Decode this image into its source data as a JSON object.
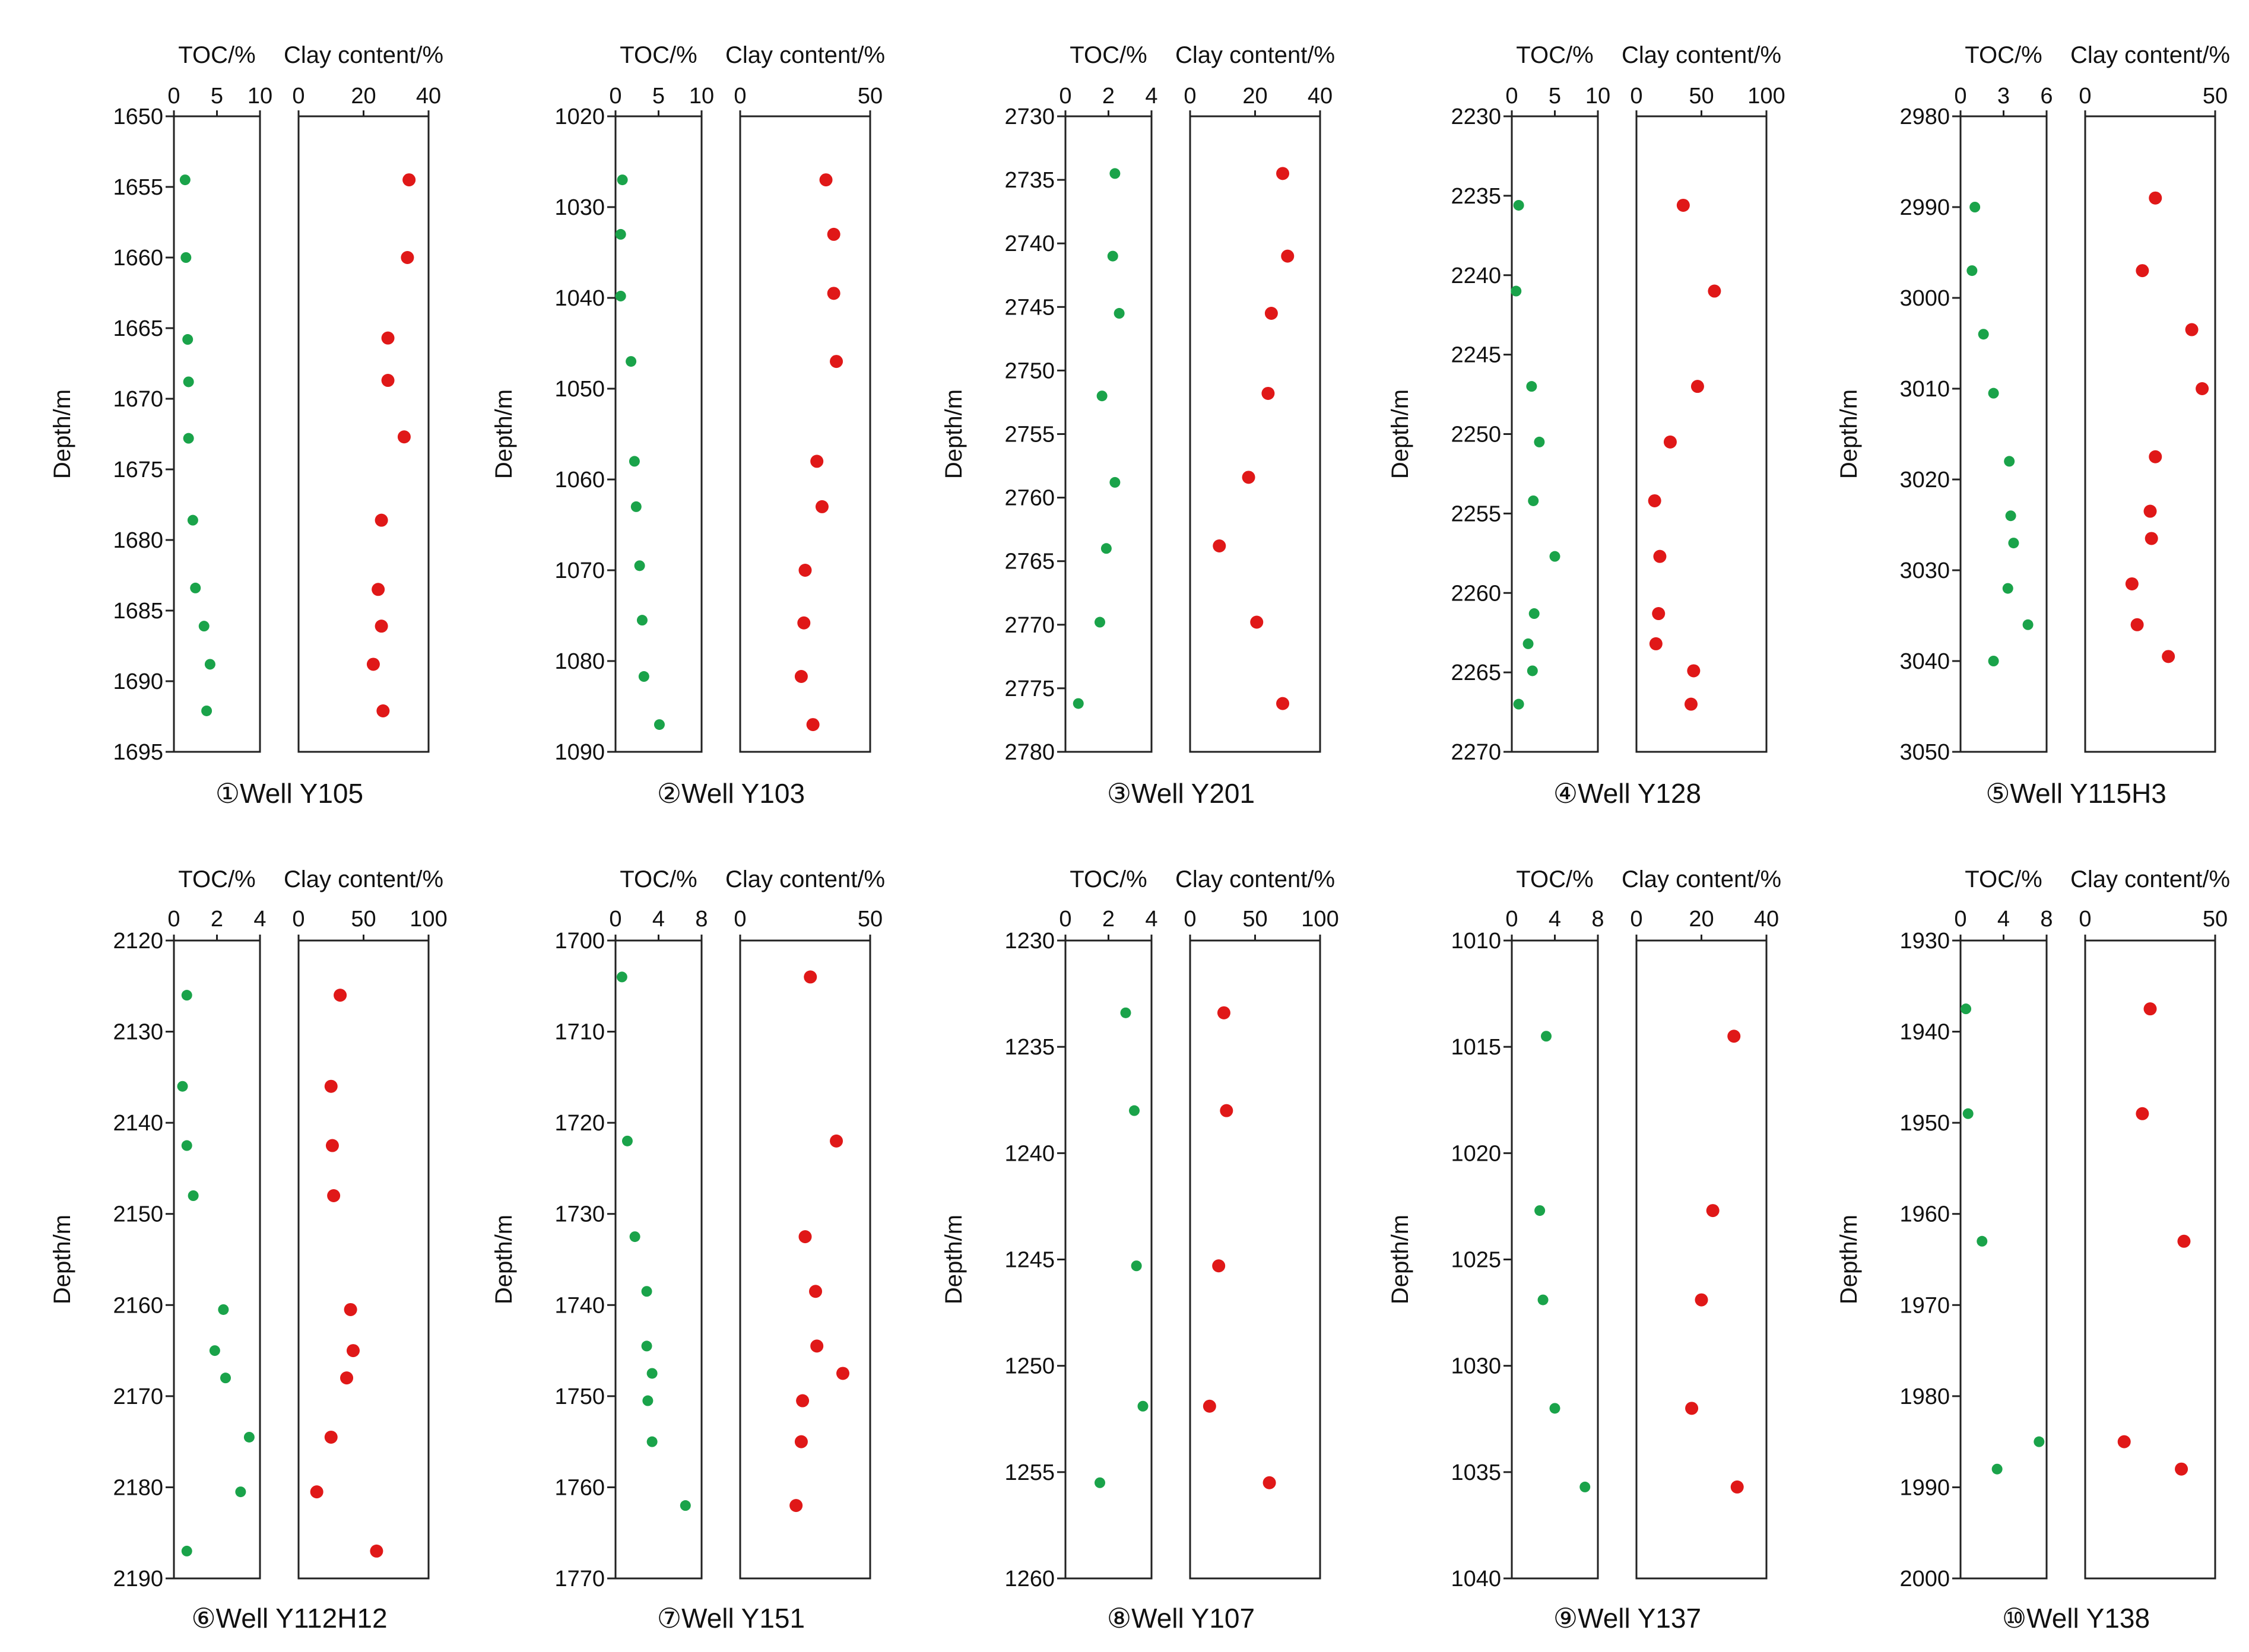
{
  "figure": {
    "y_label": "Depth/m",
    "toc_title": "TOC/%",
    "clay_title": "Clay content/%",
    "toc_color": "#1aa34a",
    "clay_color": "#e01818"
  },
  "chart_data": [
    {
      "type": "scatter",
      "label": "①Well Y105",
      "ylabel": "Depth/m",
      "depth_range": [
        1650,
        1695
      ],
      "depth_ticks": [
        1650,
        1655,
        1660,
        1665,
        1670,
        1675,
        1680,
        1685,
        1690,
        1695
      ],
      "toc": {
        "title": "TOC/%",
        "range": [
          0,
          10
        ],
        "ticks": [
          0,
          5,
          10
        ],
        "points": [
          [
            1.3,
            1654.5
          ],
          [
            1.4,
            1660
          ],
          [
            1.6,
            1665.8
          ],
          [
            1.7,
            1668.8
          ],
          [
            1.7,
            1672.8
          ],
          [
            2.2,
            1678.6
          ],
          [
            2.5,
            1683.4
          ],
          [
            3.5,
            1686.1
          ],
          [
            4.2,
            1688.8
          ],
          [
            3.8,
            1692.1
          ]
        ]
      },
      "clay": {
        "title": "Clay content/%",
        "range": [
          0,
          40
        ],
        "ticks": [
          0,
          20,
          40
        ],
        "points": [
          [
            34,
            1654.5
          ],
          [
            33.5,
            1660
          ],
          [
            27.5,
            1665.7
          ],
          [
            27.5,
            1668.7
          ],
          [
            32.5,
            1672.7
          ],
          [
            25.5,
            1678.6
          ],
          [
            24.5,
            1683.5
          ],
          [
            25.5,
            1686.1
          ],
          [
            23,
            1688.8
          ],
          [
            26,
            1692.1
          ]
        ]
      }
    },
    {
      "type": "scatter",
      "label": "②Well Y103",
      "ylabel": "Depth/m",
      "depth_range": [
        1020,
        1090
      ],
      "depth_ticks": [
        1020,
        1030,
        1040,
        1050,
        1060,
        1070,
        1080,
        1090
      ],
      "toc": {
        "title": "TOC/%",
        "range": [
          0,
          10
        ],
        "ticks": [
          0,
          5,
          10
        ],
        "points": [
          [
            0.8,
            1027
          ],
          [
            0.6,
            1033
          ],
          [
            0.6,
            1039.8
          ],
          [
            1.8,
            1047
          ],
          [
            2.2,
            1058
          ],
          [
            2.4,
            1063
          ],
          [
            2.8,
            1069.5
          ],
          [
            3.1,
            1075.5
          ],
          [
            3.3,
            1081.7
          ],
          [
            5.1,
            1087
          ]
        ]
      },
      "clay": {
        "title": "Clay content/%",
        "range": [
          0,
          50
        ],
        "ticks": [
          0,
          50
        ],
        "points": [
          [
            33,
            1027
          ],
          [
            36,
            1033
          ],
          [
            36,
            1039.5
          ],
          [
            37,
            1047
          ],
          [
            29.5,
            1058
          ],
          [
            31.5,
            1063
          ],
          [
            25,
            1070
          ],
          [
            24.5,
            1075.8
          ],
          [
            23.5,
            1081.7
          ],
          [
            28,
            1087
          ]
        ]
      }
    },
    {
      "type": "scatter",
      "label": "③Well Y201",
      "ylabel": "Depth/m",
      "depth_range": [
        2730,
        2780
      ],
      "depth_ticks": [
        2730,
        2735,
        2740,
        2745,
        2750,
        2755,
        2760,
        2765,
        2770,
        2775,
        2780
      ],
      "toc": {
        "title": "TOC/%",
        "range": [
          0,
          4
        ],
        "ticks": [
          0,
          2,
          4
        ],
        "points": [
          [
            2.3,
            2734.5
          ],
          [
            2.2,
            2741
          ],
          [
            2.5,
            2745.5
          ],
          [
            1.7,
            2752
          ],
          [
            2.3,
            2758.8
          ],
          [
            1.9,
            2764
          ],
          [
            1.6,
            2769.8
          ],
          [
            0.6,
            2776.2
          ]
        ]
      },
      "clay": {
        "title": "Clay content/%",
        "range": [
          0,
          40
        ],
        "ticks": [
          0,
          20,
          40
        ],
        "points": [
          [
            28.5,
            2734.5
          ],
          [
            30,
            2741
          ],
          [
            25,
            2745.5
          ],
          [
            24,
            2751.8
          ],
          [
            18,
            2758.4
          ],
          [
            9,
            2763.8
          ],
          [
            20.5,
            2769.8
          ],
          [
            28.5,
            2776.2
          ]
        ]
      }
    },
    {
      "type": "scatter",
      "label": "④Well Y128",
      "ylabel": "Depth/m",
      "depth_range": [
        2230,
        2270
      ],
      "depth_ticks": [
        2230,
        2235,
        2240,
        2245,
        2250,
        2255,
        2260,
        2265,
        2270
      ],
      "toc": {
        "title": "TOC/%",
        "range": [
          0,
          10
        ],
        "ticks": [
          0,
          5,
          10
        ],
        "points": [
          [
            0.8,
            2235.6
          ],
          [
            0.5,
            2241
          ],
          [
            2.3,
            2247
          ],
          [
            3.2,
            2250.5
          ],
          [
            2.5,
            2254.2
          ],
          [
            5,
            2257.7
          ],
          [
            2.6,
            2261.3
          ],
          [
            1.9,
            2263.2
          ],
          [
            2.4,
            2264.9
          ],
          [
            0.8,
            2267
          ]
        ]
      },
      "clay": {
        "title": "Clay content/%",
        "range": [
          0,
          100
        ],
        "ticks": [
          0,
          50,
          100
        ],
        "points": [
          [
            36,
            2235.6
          ],
          [
            60,
            2241
          ],
          [
            47,
            2247
          ],
          [
            26,
            2250.5
          ],
          [
            14,
            2254.2
          ],
          [
            18,
            2257.7
          ],
          [
            17,
            2261.3
          ],
          [
            15,
            2263.2
          ],
          [
            44,
            2264.9
          ],
          [
            42,
            2267
          ]
        ]
      }
    },
    {
      "type": "scatter",
      "label": "⑤Well Y115H3",
      "ylabel": "Depth/m",
      "depth_range": [
        2980,
        3050
      ],
      "depth_ticks": [
        2980,
        2990,
        3000,
        3010,
        3020,
        3030,
        3040,
        3050
      ],
      "toc": {
        "title": "TOC/%",
        "range": [
          0,
          6
        ],
        "ticks": [
          0,
          3,
          6
        ],
        "points": [
          [
            1,
            2990
          ],
          [
            0.8,
            2997
          ],
          [
            1.6,
            3004
          ],
          [
            2.3,
            3010.5
          ],
          [
            3.4,
            3018
          ],
          [
            3.5,
            3024
          ],
          [
            3.7,
            3027
          ],
          [
            3.3,
            3032
          ],
          [
            4.7,
            3036
          ],
          [
            2.3,
            3040
          ]
        ]
      },
      "clay": {
        "title": "Clay content/%",
        "range": [
          0,
          50
        ],
        "ticks": [
          0,
          50
        ],
        "points": [
          [
            27,
            2989
          ],
          [
            22,
            2997
          ],
          [
            41,
            3003.5
          ],
          [
            45,
            3010
          ],
          [
            27,
            3017.5
          ],
          [
            25,
            3023.5
          ],
          [
            25.5,
            3026.5
          ],
          [
            18,
            3031.5
          ],
          [
            20,
            3036
          ],
          [
            32,
            3039.5
          ]
        ]
      }
    },
    {
      "type": "scatter",
      "label": "⑥Well Y112H12",
      "ylabel": "Depth/m",
      "depth_range": [
        2120,
        2190
      ],
      "depth_ticks": [
        2120,
        2130,
        2140,
        2150,
        2160,
        2170,
        2180,
        2190
      ],
      "toc": {
        "title": "TOC/%",
        "range": [
          0,
          4
        ],
        "ticks": [
          0,
          2,
          4
        ],
        "points": [
          [
            0.6,
            2126
          ],
          [
            0.4,
            2136
          ],
          [
            0.6,
            2142.5
          ],
          [
            0.9,
            2148
          ],
          [
            2.3,
            2160.5
          ],
          [
            1.9,
            2165
          ],
          [
            2.4,
            2168
          ],
          [
            3.5,
            2174.5
          ],
          [
            3.1,
            2180.5
          ],
          [
            0.6,
            2187
          ]
        ]
      },
      "clay": {
        "title": "Clay content/%",
        "range": [
          0,
          100
        ],
        "ticks": [
          0,
          50,
          100
        ],
        "points": [
          [
            32,
            2126
          ],
          [
            25,
            2136
          ],
          [
            26,
            2142.5
          ],
          [
            27,
            2148
          ],
          [
            40,
            2160.5
          ],
          [
            42,
            2165
          ],
          [
            37,
            2168
          ],
          [
            25,
            2174.5
          ],
          [
            14,
            2180.5
          ],
          [
            60,
            2187
          ]
        ]
      }
    },
    {
      "type": "scatter",
      "label": "⑦Well Y151",
      "ylabel": "Depth/m",
      "depth_range": [
        1700,
        1770
      ],
      "depth_ticks": [
        1700,
        1710,
        1720,
        1730,
        1740,
        1750,
        1760,
        1770
      ],
      "toc": {
        "title": "TOC/%",
        "range": [
          0,
          8
        ],
        "ticks": [
          0,
          4,
          8
        ],
        "points": [
          [
            0.6,
            1704
          ],
          [
            1.1,
            1722
          ],
          [
            1.8,
            1732.5
          ],
          [
            2.9,
            1738.5
          ],
          [
            2.9,
            1744.5
          ],
          [
            3.4,
            1747.5
          ],
          [
            3,
            1750.5
          ],
          [
            3.4,
            1755
          ],
          [
            6.5,
            1762
          ]
        ]
      },
      "clay": {
        "title": "Clay content/%",
        "range": [
          0,
          50
        ],
        "ticks": [
          0,
          50
        ],
        "points": [
          [
            27,
            1704
          ],
          [
            37,
            1722
          ],
          [
            25,
            1732.5
          ],
          [
            29,
            1738.5
          ],
          [
            29.5,
            1744.5
          ],
          [
            39.5,
            1747.5
          ],
          [
            24,
            1750.5
          ],
          [
            23.5,
            1755
          ],
          [
            21.5,
            1762
          ]
        ]
      }
    },
    {
      "type": "scatter",
      "label": "⑧Well Y107",
      "ylabel": "Depth/m",
      "depth_range": [
        1230,
        1260
      ],
      "depth_ticks": [
        1230,
        1235,
        1240,
        1245,
        1250,
        1255,
        1260
      ],
      "toc": {
        "title": "TOC/%",
        "range": [
          0,
          4
        ],
        "ticks": [
          0,
          2,
          4
        ],
        "points": [
          [
            2.8,
            1233.4
          ],
          [
            3.2,
            1238
          ],
          [
            3.3,
            1245.3
          ],
          [
            3.6,
            1251.9
          ],
          [
            1.6,
            1255.5
          ]
        ]
      },
      "clay": {
        "title": "Clay content/%",
        "range": [
          0,
          100
        ],
        "ticks": [
          0,
          50,
          100
        ],
        "points": [
          [
            26,
            1233.4
          ],
          [
            28,
            1238
          ],
          [
            22,
            1245.3
          ],
          [
            15,
            1251.9
          ],
          [
            61,
            1255.5
          ]
        ]
      }
    },
    {
      "type": "scatter",
      "label": "⑨Well Y137",
      "ylabel": "Depth/m",
      "depth_range": [
        1010,
        1040
      ],
      "depth_ticks": [
        1010,
        1015,
        1020,
        1025,
        1030,
        1035,
        1040
      ],
      "toc": {
        "title": "TOC/%",
        "range": [
          0,
          8
        ],
        "ticks": [
          0,
          4,
          8
        ],
        "points": [
          [
            3.2,
            1014.5
          ],
          [
            2.6,
            1022.7
          ],
          [
            2.9,
            1026.9
          ],
          [
            4,
            1032
          ],
          [
            6.8,
            1035.7
          ]
        ]
      },
      "clay": {
        "title": "Clay content/%",
        "range": [
          0,
          40
        ],
        "ticks": [
          0,
          20,
          40
        ],
        "points": [
          [
            30,
            1014.5
          ],
          [
            23.5,
            1022.7
          ],
          [
            20,
            1026.9
          ],
          [
            17,
            1032
          ],
          [
            31,
            1035.7
          ]
        ]
      }
    },
    {
      "type": "scatter",
      "label": "⑩Well Y138",
      "ylabel": "Depth/m",
      "depth_range": [
        1930,
        2000
      ],
      "depth_ticks": [
        1930,
        1940,
        1950,
        1960,
        1970,
        1980,
        1990,
        2000
      ],
      "toc": {
        "title": "TOC/%",
        "range": [
          0,
          8
        ],
        "ticks": [
          0,
          4,
          8
        ],
        "points": [
          [
            0.5,
            1937.5
          ],
          [
            0.7,
            1949
          ],
          [
            2,
            1963
          ],
          [
            7.3,
            1985
          ],
          [
            3.4,
            1988
          ]
        ]
      },
      "clay": {
        "title": "Clay content/%",
        "range": [
          0,
          50
        ],
        "ticks": [
          0,
          50
        ],
        "points": [
          [
            25,
            1937.5
          ],
          [
            22,
            1949
          ],
          [
            38,
            1963
          ],
          [
            15,
            1985
          ],
          [
            37,
            1988
          ]
        ]
      }
    }
  ]
}
